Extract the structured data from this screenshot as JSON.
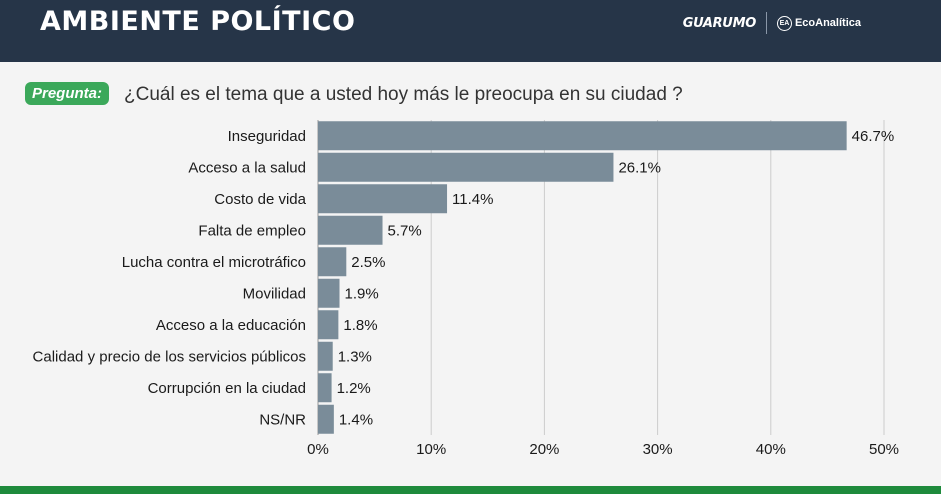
{
  "header": {
    "title": "AMBIENTE POLÍTICO",
    "logo_guarumo": "GUARUMO",
    "logo_eco": "EcoAnalítica",
    "logo_eco_icon": "EA"
  },
  "question": {
    "badge": "Pregunta:",
    "text": "¿Cuál es el tema que a usted hoy más le preocupa en su ciudad ?"
  },
  "colors": {
    "bar": "#7a8c99",
    "header_bg": "#263548",
    "badge_bg": "#3ba85a",
    "bottom_bar": "#1e8a3c",
    "grid": "#cccccc"
  },
  "chart_data": {
    "type": "bar",
    "orientation": "horizontal",
    "categories": [
      "Inseguridad",
      "Acceso a la salud",
      "Costo de vida",
      "Falta de empleo",
      "Lucha contra el microtráfico",
      "Movilidad",
      "Acceso a la educación",
      "Calidad y precio de los servicios públicos",
      "Corrupción en la ciudad",
      "NS/NR"
    ],
    "values": [
      46.7,
      26.1,
      11.4,
      5.7,
      2.5,
      1.9,
      1.8,
      1.3,
      1.2,
      1.4
    ],
    "value_labels": [
      "46.7%",
      "26.1%",
      "11.4%",
      "5.7%",
      "2.5%",
      "1.9%",
      "1.8%",
      "1.3%",
      "1.2%",
      "1.4%"
    ],
    "xlim": [
      0,
      50
    ],
    "xticks": [
      0,
      10,
      20,
      30,
      40,
      50
    ],
    "xtick_labels": [
      "0%",
      "10%",
      "20%",
      "30%",
      "40%",
      "50%"
    ],
    "grid": true
  }
}
